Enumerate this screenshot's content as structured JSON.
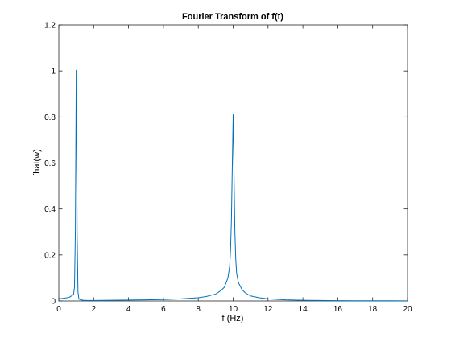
{
  "chart_data": {
    "type": "line",
    "title": "Fourier Transform of f(t)",
    "xlabel": "f (Hz)",
    "ylabel": "fhat(w)",
    "xlim": [
      0,
      20
    ],
    "ylim": [
      0,
      1.2
    ],
    "grid": false,
    "xticks": [
      0,
      2,
      4,
      6,
      8,
      10,
      12,
      14,
      16,
      18,
      20
    ],
    "yticks": [
      0,
      0.2,
      0.4,
      0.6,
      0.8,
      1,
      1.2
    ],
    "xtick_labels": [
      "0",
      "2",
      "4",
      "6",
      "8",
      "10",
      "12",
      "14",
      "16",
      "18",
      "20"
    ],
    "ytick_labels": [
      "0",
      "0.2",
      "0.4",
      "0.6",
      "0.8",
      "1",
      "1.2"
    ],
    "series": [
      {
        "color": "#0072bd",
        "x": [
          0,
          0.2,
          0.4,
          0.6,
          0.8,
          0.85,
          0.9,
          0.95,
          1.0,
          1.05,
          1.1,
          1.15,
          1.2,
          1.4,
          1.6,
          2,
          3,
          4,
          5,
          6,
          7,
          8,
          8.5,
          9,
          9.3,
          9.5,
          9.7,
          9.8,
          9.85,
          9.9,
          9.95,
          10.0,
          10.05,
          10.1,
          10.15,
          10.2,
          10.3,
          10.5,
          10.7,
          11,
          11.5,
          12,
          13,
          14,
          15,
          16,
          17,
          18,
          19,
          20
        ],
        "y": [
          0.01,
          0.011,
          0.013,
          0.016,
          0.025,
          0.03,
          0.06,
          0.3,
          1.003,
          0.3,
          0.04,
          0.01,
          0.006,
          0.003,
          0.002,
          0.002,
          0.003,
          0.004,
          0.005,
          0.006,
          0.009,
          0.014,
          0.02,
          0.03,
          0.045,
          0.06,
          0.1,
          0.15,
          0.22,
          0.35,
          0.58,
          0.81,
          0.55,
          0.3,
          0.18,
          0.12,
          0.08,
          0.05,
          0.035,
          0.022,
          0.014,
          0.009,
          0.005,
          0.003,
          0.002,
          0.0015,
          0.001,
          0.001,
          0.0008,
          0.0006
        ]
      }
    ]
  }
}
